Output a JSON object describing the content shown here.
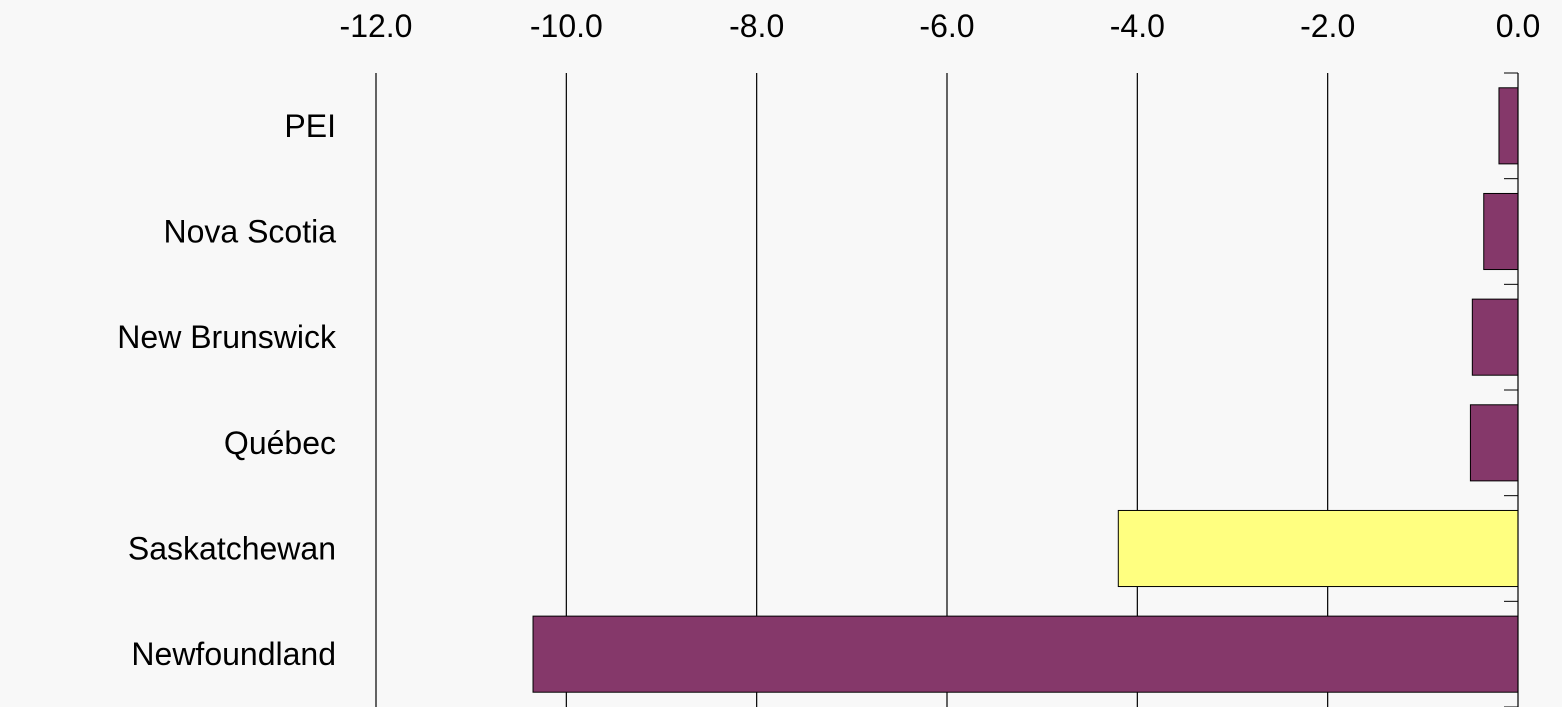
{
  "chart_data": {
    "type": "bar",
    "orientation": "horizontal",
    "title": "",
    "xlabel": "",
    "ylabel": "",
    "x_axis_position": "top",
    "xlim": [
      -12,
      0
    ],
    "x_ticks": [
      -12,
      -10,
      -8,
      -6,
      -4,
      -2,
      0
    ],
    "x_tick_labels": [
      "-12.0",
      "-10.0",
      "-8.0",
      "-6.0",
      "-4.0",
      "-2.0",
      "0.0"
    ],
    "grid": "vertical",
    "categories": [
      "PEI",
      "Nova Scotia",
      "New Brunswick",
      "Québec",
      "Saskatchewan",
      "Newfoundland"
    ],
    "values": [
      -0.2,
      -0.36,
      -0.48,
      -0.5,
      -4.2,
      -10.35
    ],
    "bar_colors": [
      "#85386a",
      "#85386a",
      "#85386a",
      "#85386a",
      "#ffff80",
      "#85386a"
    ]
  }
}
